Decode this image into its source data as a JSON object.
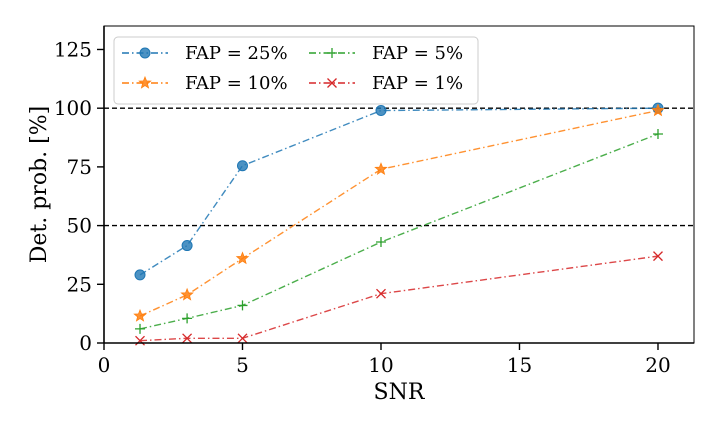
{
  "chart_data": {
    "type": "line",
    "title": "",
    "xlabel": "SNR",
    "ylabel": "Det. prob. [%]",
    "xlim": [
      0,
      21.3
    ],
    "ylim": [
      0,
      135
    ],
    "xticks": [
      0,
      5,
      10,
      15,
      20
    ],
    "yticks": [
      0,
      25,
      50,
      75,
      100,
      125
    ],
    "x_tick_labels": [
      "0",
      "5",
      "10",
      "15",
      "20"
    ],
    "y_tick_labels": [
      "0",
      "25",
      "50",
      "75",
      "100",
      "125"
    ],
    "grid": false,
    "legend_position": "top-left",
    "reference_lines": [
      100,
      50
    ],
    "reference_line_color": "#000000",
    "series": [
      {
        "name": "FAP = 25%",
        "color": "#1f77b4",
        "marker": "circle",
        "dash": "dashdot",
        "x": [
          1.3,
          3,
          5,
          10,
          20
        ],
        "y": [
          29,
          41.5,
          75.5,
          99,
          100
        ]
      },
      {
        "name": "FAP = 10%",
        "color": "#ff7f0e",
        "marker": "star",
        "dash": "dashdot",
        "x": [
          1.3,
          3,
          5,
          10,
          20
        ],
        "y": [
          11.5,
          20.5,
          36,
          74,
          99
        ]
      },
      {
        "name": "FAP = 5%",
        "color": "#2ca02c",
        "marker": "plus",
        "dash": "dashdot",
        "x": [
          1.3,
          3,
          5,
          10,
          20
        ],
        "y": [
          6,
          10.5,
          16,
          43,
          89
        ]
      },
      {
        "name": "FAP = 1%",
        "color": "#d62728",
        "marker": "x",
        "dash": "dashdot",
        "x": [
          1.3,
          3,
          5,
          10,
          20
        ],
        "y": [
          1,
          2,
          2,
          21,
          37
        ]
      }
    ]
  }
}
